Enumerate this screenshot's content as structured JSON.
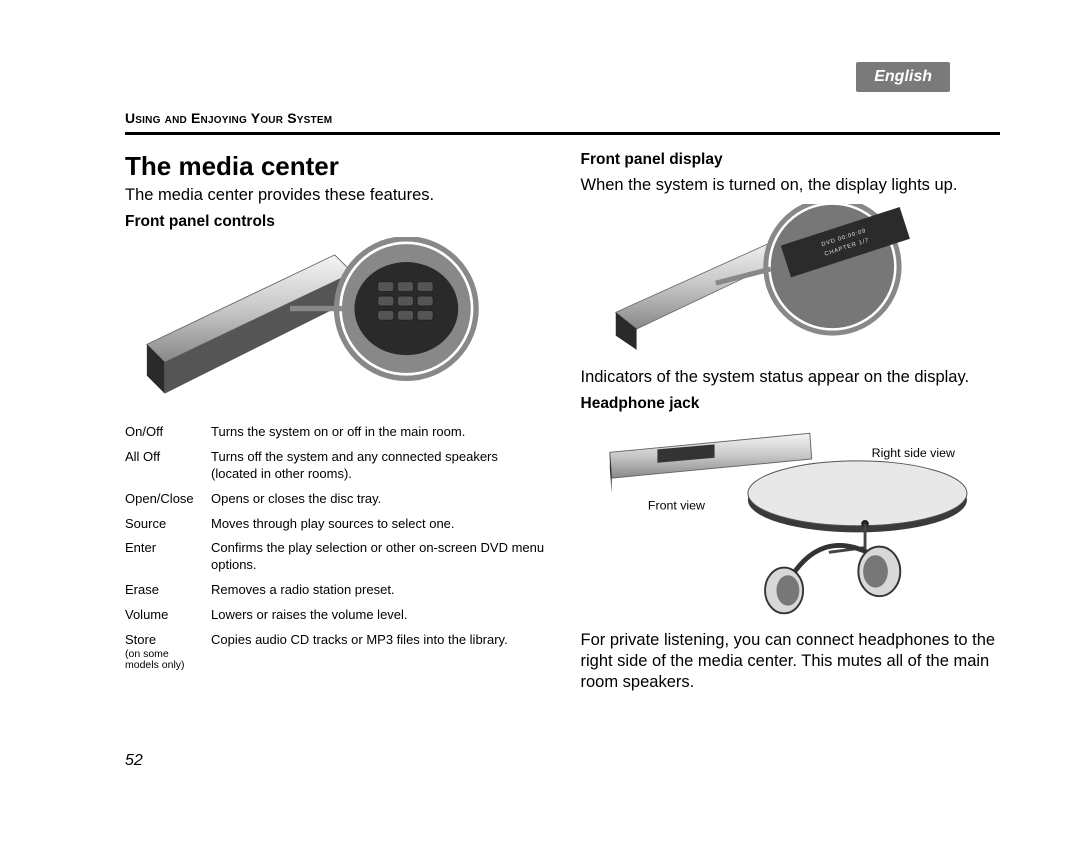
{
  "language": "English",
  "section_header": "Using and Enjoying Your System",
  "page_number": "52",
  "left": {
    "title": "The media center",
    "intro": "The media center provides these features.",
    "sub_controls": "Front panel controls",
    "controls": [
      {
        "term": "On/Off",
        "desc": "Turns the system on or off in the main room."
      },
      {
        "term": "All Off",
        "desc": "Turns off the system and any connected speakers (located in other rooms)."
      },
      {
        "term": "Open/Close",
        "desc": "Opens or closes the disc tray."
      },
      {
        "term": "Source",
        "desc": "Moves through play sources to select one."
      },
      {
        "term": "Enter",
        "desc": "Confirms the play selection or other on-screen DVD menu options."
      },
      {
        "term": "Erase",
        "desc": "Removes a radio station preset."
      },
      {
        "term": "Volume",
        "desc": "Lowers or raises the volume level."
      },
      {
        "term": "Store",
        "note": "(on some models only)",
        "desc": "Copies audio CD tracks or MP3 files into the library."
      }
    ]
  },
  "right": {
    "sub_display": "Front panel display",
    "display_text1": "When the system is turned on, the display lights up.",
    "display_text2": "Indicators of the system status appear on the display.",
    "display_readout_line1": "DVD  00:00:09",
    "display_readout_line2": "CHAPTER   1/7",
    "sub_jack": "Headphone jack",
    "jack_labels": {
      "front": "Front view",
      "right": "Right side view"
    },
    "jack_text": "For private listening, you can connect headphones to the right side of the media center. This mutes all of the main room speakers."
  }
}
